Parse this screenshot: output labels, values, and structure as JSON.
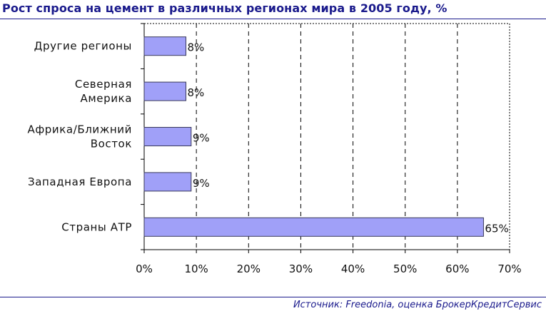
{
  "title": "Рост спроса на цемент в различных регионах мира в 2005 году, %",
  "source": "Источник: Freedonia, оценка БрокерКредитСервис",
  "colors": {
    "title": "#1a1a8c",
    "bar_fill": "#a0a0f8",
    "bar_stroke": "#3a3a5a",
    "grid": "#000000"
  },
  "chart_data": {
    "type": "bar",
    "orientation": "horizontal",
    "title": "Рост спроса на цемент в различных регионах мира в 2005 году, %",
    "categories": [
      [
        "Другие регионы"
      ],
      [
        "Северная",
        "Америка"
      ],
      [
        "Африка/Ближний",
        "Восток"
      ],
      [
        "Западная Европа"
      ],
      [
        "Страны АТР"
      ]
    ],
    "values": [
      8,
      8,
      9,
      9,
      65
    ],
    "data_labels": [
      "8%",
      "8%",
      "9%",
      "9%",
      "65%"
    ],
    "xlim": [
      0,
      70
    ],
    "x_ticks": [
      0,
      10,
      20,
      30,
      40,
      50,
      60,
      70
    ],
    "x_tick_labels": [
      "0%",
      "10%",
      "20%",
      "30%",
      "40%",
      "50%",
      "60%",
      "70%"
    ],
    "xlabel": "",
    "ylabel": "",
    "grid": "vertical dashed",
    "legend": "none"
  }
}
